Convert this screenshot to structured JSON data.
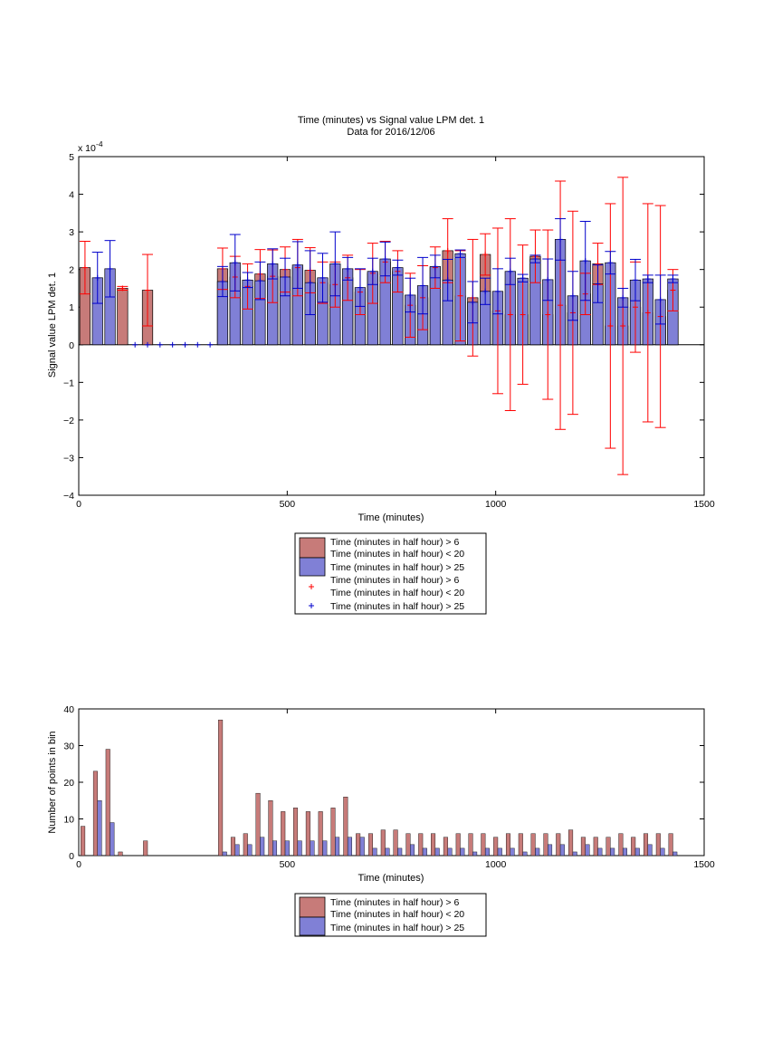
{
  "chart_data": [
    {
      "type": "bar",
      "title": "Time (minutes) vs Signal value LPM det. 1",
      "subtitle": "Data for 2016/12/06",
      "xlabel": "Time (minutes)",
      "ylabel": "Signal value LPM det. 1",
      "scale_label": "x 10",
      "scale_exponent": "-4",
      "xlim": [
        0,
        1500
      ],
      "ylim": [
        -4,
        5
      ],
      "xticks": [
        "0",
        "500",
        "1000",
        "1500"
      ],
      "yticks": [
        "−4",
        "−3",
        "−2",
        "−1",
        "0",
        "1",
        "2",
        "3",
        "4",
        "5"
      ],
      "legend_position": "below",
      "legend": [
        {
          "kind": "bar",
          "color": "#c77b79",
          "label": "Time (minutes in half hour) > 6",
          "label2": "Time (minutes in half hour) < 20"
        },
        {
          "kind": "bar",
          "color": "#8080d6",
          "label": "Time (minutes in half hour) > 25",
          "label2": ""
        },
        {
          "kind": "marker",
          "color": "#ff0000",
          "label": "Time (minutes in half hour) > 6",
          "label2": "Time (minutes in half hour) < 20"
        },
        {
          "kind": "marker",
          "color": "#0000cc",
          "label": "Time (minutes in half hour) > 25",
          "label2": ""
        }
      ],
      "series": [
        {
          "color": "#c77b79",
          "err_color": "#ff0000",
          "x": [
            15,
            105,
            165,
            345,
            375,
            405,
            435,
            465,
            495,
            525,
            555,
            585,
            615,
            645,
            675,
            705,
            735,
            765,
            795,
            825,
            855,
            885,
            915,
            945,
            975,
            1005,
            1035,
            1065,
            1095,
            1125,
            1155,
            1185,
            1215,
            1245,
            1275,
            1305,
            1335,
            1365,
            1395,
            1425
          ],
          "values": [
            2.05,
            1.5,
            1.45,
            2.02,
            1.8,
            1.55,
            1.88,
            1.82,
            2.0,
            2.05,
            1.98,
            1.65,
            1.6,
            1.78,
            1.4,
            1.9,
            2.2,
            1.95,
            1.05,
            1.25,
            2.05,
            2.5,
            1.3,
            1.25,
            2.4,
            0.9,
            0.8,
            0.8,
            2.35,
            0.8,
            1.05,
            0.85,
            1.35,
            2.15,
            0.5,
            0.5,
            1.0,
            0.85,
            0.75,
            1.45
          ],
          "errors": [
            0.7,
            0.05,
            0.95,
            0.55,
            0.55,
            0.6,
            0.65,
            0.7,
            0.6,
            0.75,
            0.6,
            0.55,
            0.6,
            0.6,
            0.6,
            0.8,
            0.55,
            0.55,
            0.85,
            0.85,
            0.55,
            0.85,
            1.2,
            1.55,
            0.55,
            2.2,
            2.55,
            1.85,
            0.7,
            2.25,
            3.3,
            2.7,
            0.55,
            0.55,
            3.25,
            3.95,
            1.2,
            2.9,
            2.95,
            0.55
          ]
        },
        {
          "color": "#8080d6",
          "err_color": "#0000cc",
          "x": [
            45,
            75,
            135,
            165,
            195,
            225,
            255,
            285,
            315,
            345,
            375,
            405,
            435,
            465,
            495,
            525,
            555,
            585,
            615,
            645,
            675,
            705,
            735,
            765,
            795,
            825,
            855,
            885,
            915,
            945,
            975,
            1005,
            1035,
            1065,
            1095,
            1125,
            1155,
            1185,
            1215,
            1245,
            1275,
            1305,
            1335,
            1365,
            1395,
            1425
          ],
          "values": [
            1.78,
            2.02,
            0,
            0,
            0,
            0,
            0,
            0,
            0,
            1.68,
            2.18,
            1.72,
            1.7,
            2.15,
            1.8,
            2.12,
            1.65,
            1.78,
            2.15,
            2.02,
            1.52,
            1.95,
            2.28,
            2.05,
            1.32,
            1.57,
            2.08,
            1.72,
            2.42,
            1.13,
            1.42,
            1.42,
            1.95,
            1.77,
            2.28,
            1.73,
            2.8,
            1.3,
            2.23,
            1.62,
            2.18,
            1.25,
            1.72,
            1.75,
            1.2,
            1.75
          ],
          "errors": [
            0.68,
            0.75,
            0,
            0,
            0,
            0,
            0,
            0,
            0,
            0.4,
            0.75,
            0.2,
            0.5,
            0.4,
            0.5,
            0.62,
            0.85,
            0.65,
            0.85,
            0.3,
            0.5,
            0.35,
            0.45,
            0.2,
            0.45,
            0.75,
            0.3,
            0.55,
            0.1,
            0.55,
            0.35,
            0.6,
            0.35,
            0.1,
            0.1,
            0.55,
            0.55,
            0.65,
            1.05,
            0.5,
            0.3,
            0.25,
            0.55,
            0.1,
            0.65,
            0.1
          ]
        }
      ]
    },
    {
      "type": "bar",
      "xlabel": "Time (minutes)",
      "ylabel": "Number of points in bin",
      "xlim": [
        0,
        1500
      ],
      "ylim": [
        0,
        40
      ],
      "xticks": [
        "0",
        "500",
        "1000",
        "1500"
      ],
      "yticks": [
        "0",
        "10",
        "20",
        "30",
        "40"
      ],
      "legend_position": "below",
      "legend": [
        {
          "kind": "bar",
          "color": "#c77b79",
          "label": "Time (minutes in half hour) > 6",
          "label2": "Time (minutes in half hour) < 20"
        },
        {
          "kind": "bar",
          "color": "#8080d6",
          "label": "Time (minutes in half hour) > 25",
          "label2": ""
        }
      ],
      "series": [
        {
          "color": "#c77b79",
          "x": [
            15,
            45,
            75,
            105,
            165,
            345,
            375,
            405,
            435,
            465,
            495,
            525,
            555,
            585,
            615,
            645,
            675,
            705,
            735,
            765,
            795,
            825,
            855,
            885,
            915,
            945,
            975,
            1005,
            1035,
            1065,
            1095,
            1125,
            1155,
            1185,
            1215,
            1245,
            1275,
            1305,
            1335,
            1365,
            1395,
            1425
          ],
          "values": [
            8,
            23,
            29,
            1,
            4,
            37,
            5,
            6,
            17,
            15,
            12,
            13,
            12,
            12,
            13,
            16,
            6,
            6,
            7,
            7,
            6,
            6,
            6,
            5,
            6,
            6,
            6,
            5,
            6,
            6,
            6,
            6,
            6,
            7,
            5,
            5,
            5,
            6,
            5,
            6,
            6,
            6
          ]
        },
        {
          "color": "#8080d6",
          "x": [
            45,
            75,
            345,
            375,
            405,
            435,
            465,
            495,
            525,
            555,
            585,
            615,
            645,
            675,
            705,
            735,
            765,
            795,
            825,
            855,
            885,
            915,
            945,
            975,
            1005,
            1035,
            1065,
            1095,
            1125,
            1155,
            1185,
            1215,
            1245,
            1275,
            1305,
            1335,
            1365,
            1395,
            1425
          ],
          "values": [
            15,
            9,
            1,
            3,
            3,
            5,
            4,
            4,
            4,
            4,
            4,
            5,
            5,
            5,
            2,
            2,
            2,
            3,
            2,
            2,
            2,
            2,
            1,
            2,
            2,
            2,
            1,
            2,
            3,
            3,
            1,
            3,
            2,
            2,
            2,
            2,
            3,
            2,
            1
          ]
        }
      ]
    }
  ]
}
